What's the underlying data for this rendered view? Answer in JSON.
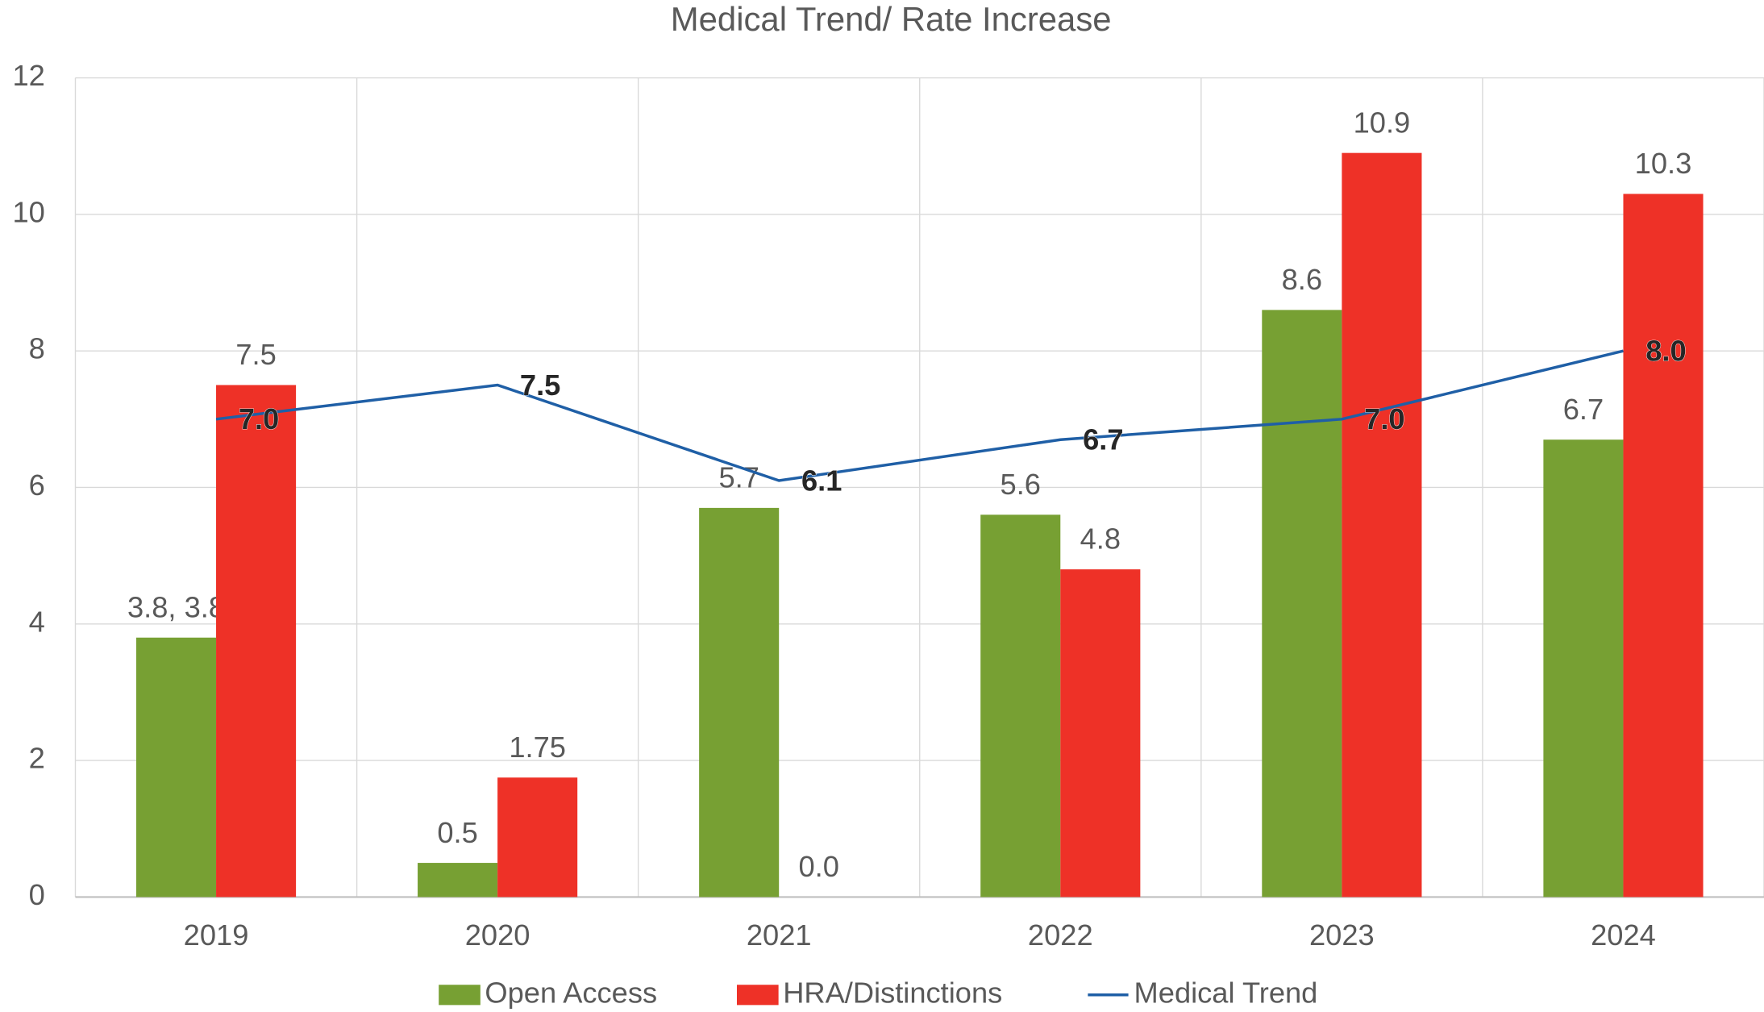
{
  "chart_data": {
    "type": "bar",
    "title": "Medical Trend/ Rate Increase",
    "categories": [
      "2019",
      "2020",
      "2021",
      "2022",
      "2023",
      "2024"
    ],
    "series": [
      {
        "name": "Open Access",
        "color": "#77a033",
        "type": "bar",
        "values": [
          3.8,
          0.5,
          5.7,
          5.6,
          8.6,
          6.7
        ],
        "value_labels": [
          "3.8, 3.8",
          "0.5",
          "5.7",
          "5.6",
          "8.6",
          "6.7"
        ]
      },
      {
        "name": "HRA/Distinctions",
        "color": "#ee3127",
        "type": "bar",
        "values": [
          7.5,
          1.75,
          0,
          4.8,
          10.9,
          10.3
        ],
        "value_labels": [
          "7.5",
          "1.75",
          "0.0",
          "4.8",
          "10.9",
          "10.3"
        ]
      },
      {
        "name": "Medical Trend",
        "color": "#1f5fa6",
        "type": "line",
        "values": [
          7,
          7.5,
          6.1,
          6.7,
          7,
          8
        ],
        "value_labels": [
          "7.0",
          "7.5",
          "6.1",
          "6.7",
          "7.0",
          "8.0"
        ]
      }
    ],
    "ylim": [
      0,
      12
    ],
    "yticks": [
      0,
      2,
      4,
      6,
      8,
      10,
      12
    ],
    "grid": true,
    "legend": "bottom"
  }
}
